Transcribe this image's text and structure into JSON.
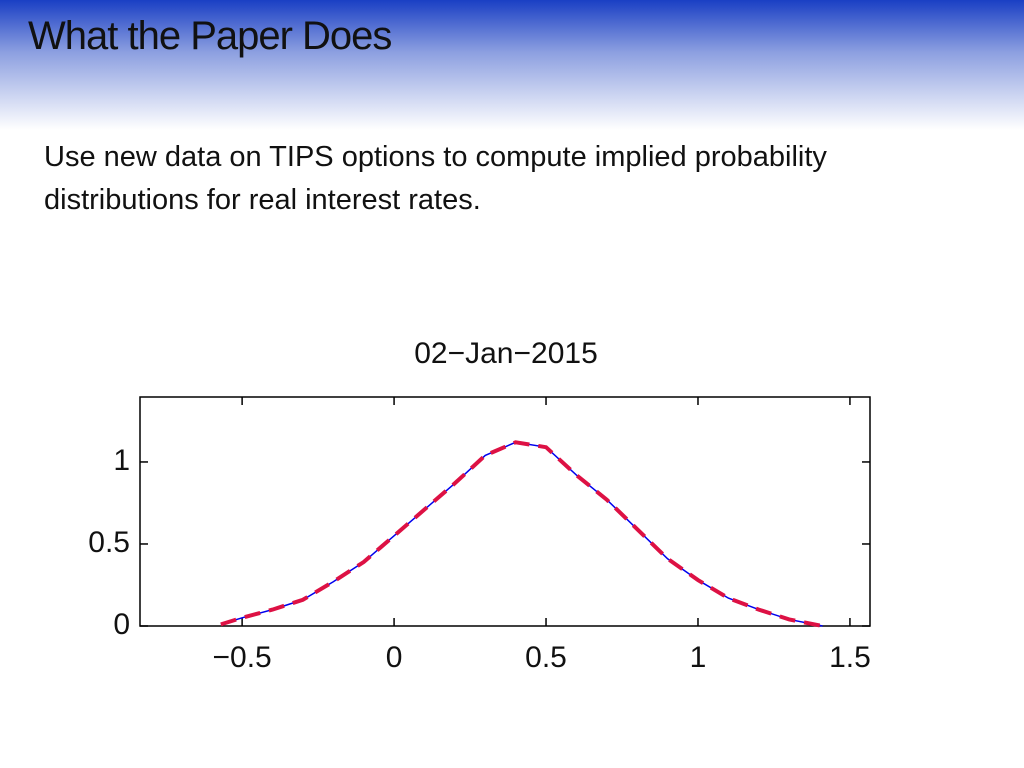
{
  "header": {
    "title": "What the Paper Does"
  },
  "body": {
    "text": "Use new data on TIPS options to compute implied probability distributions for real interest rates."
  },
  "chart_data": {
    "type": "line",
    "title": "02−Jan−2015",
    "x": [
      -0.57,
      -0.5,
      -0.4,
      -0.3,
      -0.2,
      -0.1,
      0,
      0.1,
      0.2,
      0.3,
      0.4,
      0.5,
      0.6,
      0.7,
      0.8,
      0.9,
      1.0,
      1.1,
      1.2,
      1.3,
      1.41
    ],
    "series": [
      {
        "color": "#0000ee",
        "dashed": false,
        "values": [
          0.01,
          0.05,
          0.1,
          0.16,
          0.27,
          0.39,
          0.55,
          0.71,
          0.87,
          1.04,
          1.12,
          1.09,
          0.92,
          0.77,
          0.59,
          0.41,
          0.28,
          0.17,
          0.1,
          0.04,
          0.0
        ]
      },
      {
        "color": "#dd1144",
        "dashed": true,
        "values": [
          0.01,
          0.05,
          0.1,
          0.16,
          0.27,
          0.39,
          0.55,
          0.71,
          0.87,
          1.04,
          1.12,
          1.09,
          0.92,
          0.77,
          0.59,
          0.41,
          0.28,
          0.17,
          0.1,
          0.04,
          0.0
        ]
      }
    ],
    "xlim": [
      -0.836,
      1.566
    ],
    "ylim": [
      0,
      1.396
    ],
    "xticks": [
      {
        "value": -0.5,
        "label": "−0.5"
      },
      0,
      0.5,
      1,
      1.5
    ],
    "yticks": [
      0,
      0.5,
      1
    ],
    "grid": false
  }
}
